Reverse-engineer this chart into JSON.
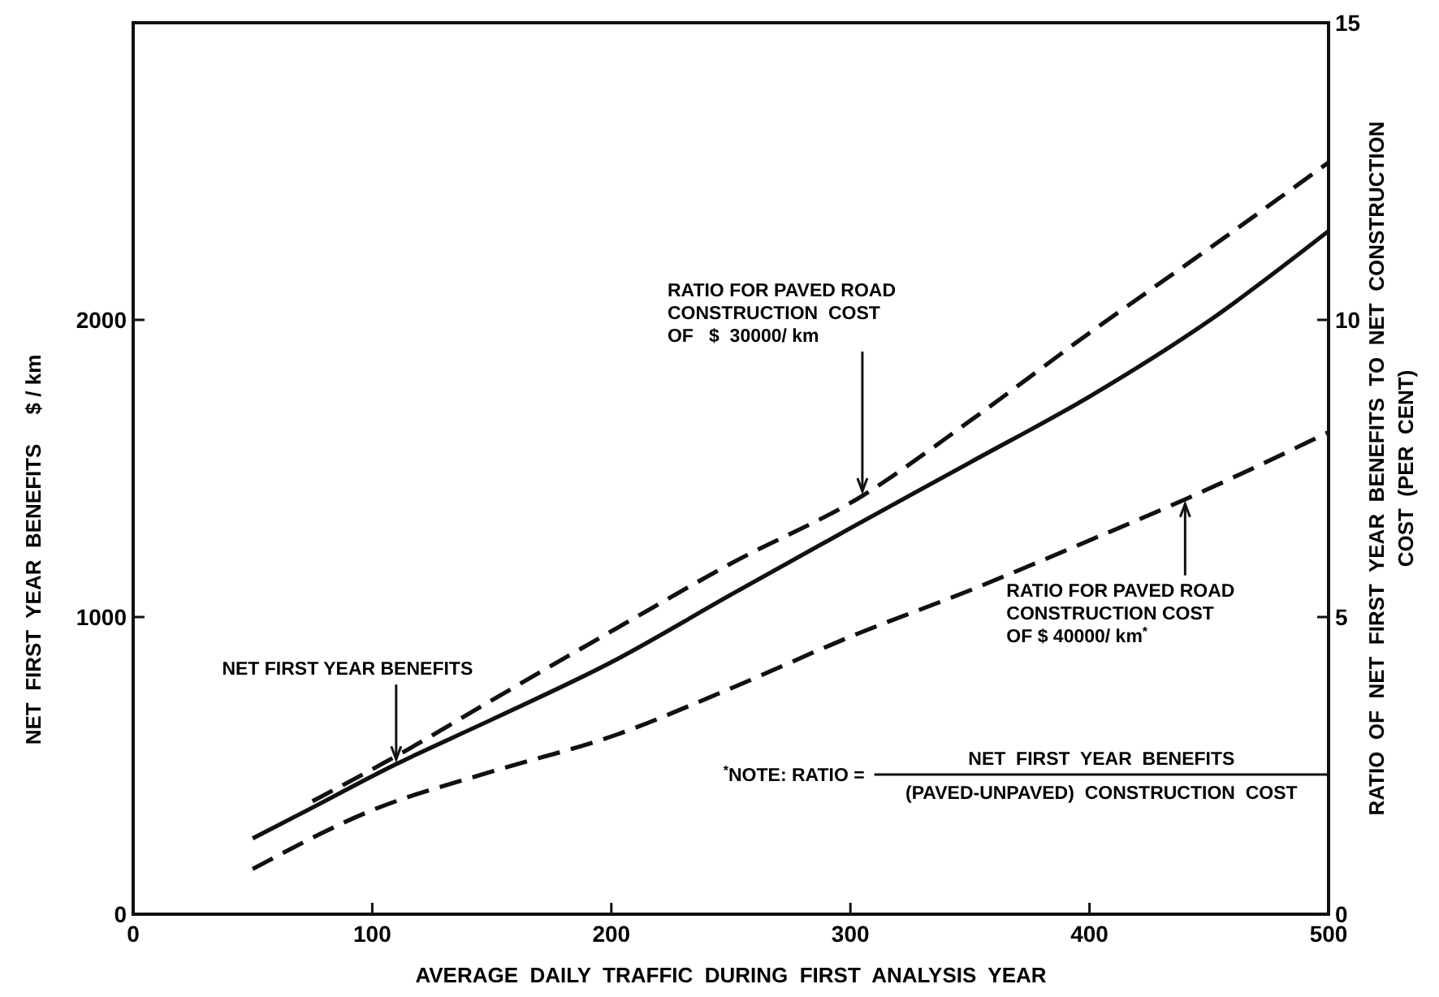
{
  "chart_data": {
    "type": "line",
    "xlabel": "AVERAGE  DAILY  TRAFFIC  DURING  FIRST  ANALYSIS  YEAR",
    "ylabel": "NET  FIRST  YEAR  BENEFITS     $ / km",
    "y2label": "RATIO  OF  NET  FIRST  YEAR  BENEFITS  TO  NET  CONSTRUCTION\nCOST  (PER  CENT)",
    "xlim": [
      0,
      500
    ],
    "xticks": [
      0,
      100,
      200,
      300,
      400,
      500
    ],
    "ylim": [
      0,
      3000
    ],
    "yticks": [
      0,
      1000,
      2000
    ],
    "y2lim": [
      0,
      15
    ],
    "y2ticks": [
      0,
      5,
      10,
      15
    ],
    "grid": false,
    "series": [
      {
        "color": "#111111",
        "line_style": "solid",
        "axis": "y",
        "x": [
          50,
          70,
          110,
          150,
          200,
          250,
          300,
          350,
          400,
          450,
          500
        ],
        "values": [
          255,
          338,
          505,
          655,
          848,
          1075,
          1299,
          1520,
          1742,
          1997,
          2299
        ]
      },
      {
        "color": "#111111",
        "line_style": "dashed",
        "axis": "y2",
        "x": [
          75,
          110,
          150,
          200,
          250,
          305,
          350,
          400,
          450,
          500
        ],
        "values": [
          1.9,
          2.66,
          3.6,
          4.76,
          5.9,
          7.04,
          8.3,
          9.78,
          11.2,
          12.65
        ]
      },
      {
        "color": "#111111",
        "line_style": "dashed",
        "axis": "y2",
        "x": [
          50,
          100,
          150,
          200,
          250,
          300,
          350,
          400,
          440,
          500
        ],
        "values": [
          0.76,
          1.75,
          2.4,
          2.99,
          3.8,
          4.67,
          5.45,
          6.29,
          6.98,
          8.11
        ]
      }
    ],
    "annotations": [
      {
        "text": "NET FIRST YEAR BENEFITS",
        "x": 110,
        "y": 505
      },
      {
        "text": "RATIO FOR PAVED ROAD\nCONSTRUCTION  COST\nOF   $  30000/ km",
        "x": 305,
        "y": 1407
      },
      {
        "text": "RATIO FOR PAVED ROAD\nCONSTRUCTION COST\nOF $ 40000/ km$^{*}$",
        "x": 440,
        "y": 1397
      },
      "$^{*}$NOTE: RATIO =",
      "NET  FIRST  YEAR  BENEFITS",
      "(PAVED-UNPAVED)  CONSTRUCTION  COST"
    ]
  }
}
